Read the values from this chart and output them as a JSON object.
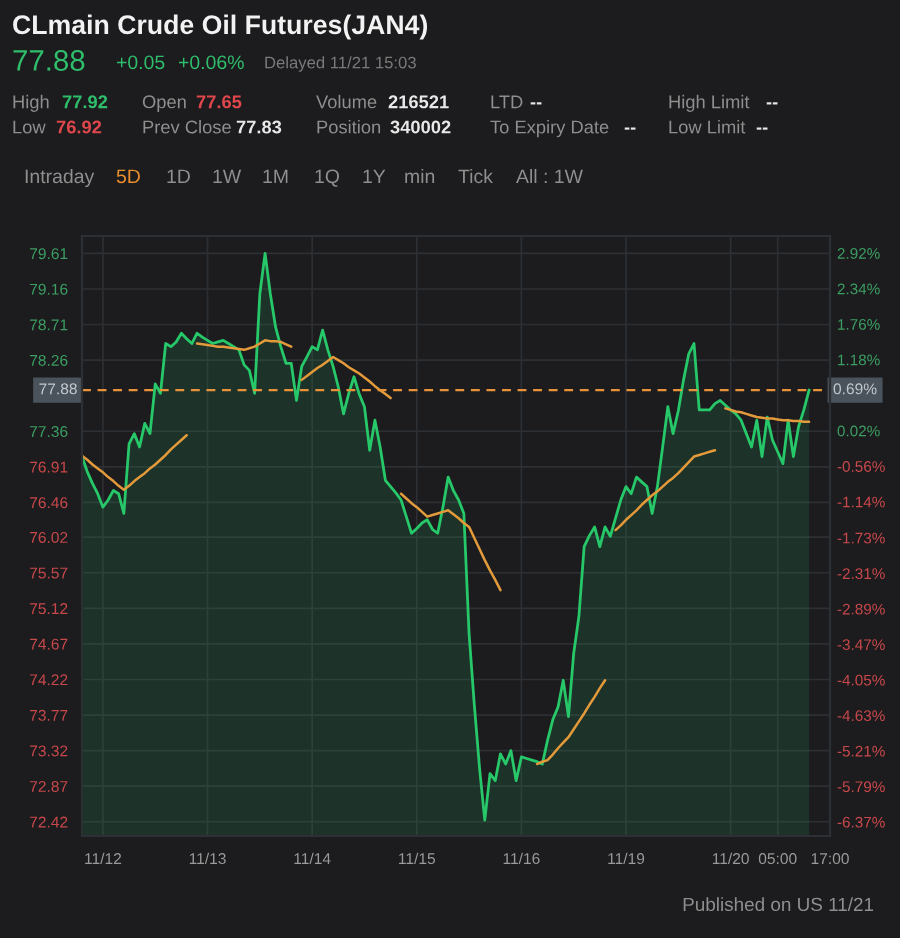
{
  "chart_data": {
    "type": "area",
    "title": "CLmain Crude Oil Futures(JAN4)",
    "annotations": [
      "77.88",
      "+0.05",
      "+0.06%",
      "Delayed 11/21 15:03",
      "High",
      "77.92",
      "Open",
      "77.65",
      "Volume",
      "216521",
      "LTD",
      "--",
      "High Limit",
      "--",
      "Low",
      "76.92",
      "Prev Close",
      "77.83",
      "Position",
      "340002",
      "To Expiry Date",
      "--",
      "Low Limit",
      "--",
      "Intraday",
      "5D",
      "1D",
      "1W",
      "1M",
      "1Q",
      "1Y",
      "min",
      "Tick",
      "All : 1W",
      "Published on US 11/21",
      {
        "text": "0.69%",
        "y": 77.88
      }
    ],
    "categories": [
      null,
      null,
      null,
      null,
      "11/12",
      null,
      null,
      null,
      null,
      null,
      null,
      null,
      null,
      null,
      null,
      null,
      null,
      null,
      null,
      null,
      null,
      null,
      null,
      null,
      "11/13",
      null,
      null,
      null,
      null,
      null,
      null,
      null,
      null,
      null,
      null,
      null,
      null,
      null,
      null,
      null,
      null,
      null,
      null,
      null,
      "11/14",
      null,
      null,
      null,
      null,
      null,
      null,
      null,
      null,
      null,
      null,
      null,
      null,
      null,
      null,
      null,
      null,
      null,
      null,
      null,
      "11/15",
      null,
      null,
      null,
      null,
      null,
      null,
      null,
      null,
      null,
      null,
      null,
      null,
      null,
      null,
      null,
      null,
      null,
      null,
      null,
      "11/16",
      null,
      null,
      null,
      null,
      null,
      null,
      null,
      null,
      null,
      null,
      null,
      null,
      null,
      null,
      null,
      null,
      null,
      null,
      null,
      "11/19",
      null,
      null,
      null,
      null,
      null,
      null,
      null,
      null,
      null,
      null,
      null,
      null,
      null,
      null,
      null,
      null,
      null,
      null,
      null,
      "11/20",
      null,
      null,
      null,
      null,
      null,
      null,
      null,
      null,
      "05:00",
      null,
      null,
      null,
      null,
      null,
      null,
      null,
      null,
      null,
      "17:00"
    ],
    "ylim": [
      72.24,
      79.83
    ],
    "yticks": [
      72.42,
      72.87,
      73.32,
      73.77,
      74.22,
      74.67,
      75.12,
      75.57,
      76.02,
      76.46,
      76.91,
      77.36,
      78.26,
      78.71,
      79.16,
      79.61
    ],
    "y2lim": [
      -6.6,
      3.2
    ],
    "y2ticks": [
      {
        "value": -6.37,
        "label": "-6.37%"
      },
      {
        "value": -5.79,
        "label": "-5.79%"
      },
      {
        "value": -5.21,
        "label": "-5.21%"
      },
      {
        "value": -4.63,
        "label": "-4.63%"
      },
      {
        "value": -4.05,
        "label": "-4.05%"
      },
      {
        "value": -3.47,
        "label": "-3.47%"
      },
      {
        "value": -2.89,
        "label": "-2.89%"
      },
      {
        "value": -2.31,
        "label": "-2.31%"
      },
      {
        "value": -1.73,
        "label": "-1.73%"
      },
      {
        "value": -1.14,
        "label": "-1.14%"
      },
      {
        "value": -0.56,
        "label": "-0.56%"
      },
      {
        "value": 0.02,
        "label": "0.02%"
      },
      {
        "value": 1.18,
        "label": "1.18%"
      },
      {
        "value": 1.76,
        "label": "1.76%"
      },
      {
        "value": 2.34,
        "label": "2.34%"
      },
      {
        "value": 2.92,
        "label": "2.92%"
      }
    ],
    "grid": true,
    "ref_lines": [
      {
        "axis": "y",
        "value": 77.88,
        "label": "77.88",
        "color": "#e8923a",
        "line_style": "dashed"
      }
    ],
    "series": [
      {
        "color": "#27c86a",
        "values": [
          77.04,
          76.85,
          76.7,
          76.57,
          76.4,
          76.49,
          76.61,
          76.57,
          76.32,
          77.2,
          77.33,
          77.16,
          77.46,
          77.33,
          77.96,
          77.84,
          78.47,
          78.43,
          78.49,
          78.6,
          78.53,
          78.47,
          78.6,
          78.55,
          78.51,
          78.47,
          78.49,
          78.51,
          78.47,
          78.43,
          78.39,
          78.2,
          78.13,
          77.84,
          79.1,
          79.61,
          79.1,
          78.68,
          78.43,
          78.22,
          78.22,
          77.75,
          78.18,
          78.3,
          78.43,
          78.39,
          78.64,
          78.39,
          78.18,
          77.92,
          77.58,
          77.84,
          78.05,
          77.83,
          77.67,
          77.12,
          77.5,
          77.16,
          76.74,
          76.66,
          76.58,
          76.49,
          76.28,
          76.07,
          76.13,
          76.2,
          76.24,
          76.12,
          76.07,
          76.4,
          76.78,
          76.61,
          76.49,
          76.32,
          74.8,
          73.9,
          73.1,
          72.44,
          73.03,
          72.94,
          73.28,
          73.15,
          73.32,
          72.94,
          73.24,
          73.22,
          73.2,
          73.18,
          73.15,
          73.45,
          73.71,
          73.87,
          74.21,
          73.75,
          74.55,
          75.02,
          75.9,
          76.04,
          76.15,
          75.9,
          76.15,
          76.03,
          76.26,
          76.49,
          76.66,
          76.57,
          76.78,
          76.72,
          76.66,
          76.32,
          76.66,
          77.16,
          77.67,
          77.33,
          77.62,
          78.01,
          78.34,
          78.47,
          77.63,
          77.63,
          77.63,
          77.71,
          77.75,
          77.69,
          77.63,
          77.58,
          77.5,
          77.33,
          77.16,
          77.5,
          77.04,
          77.54,
          77.25,
          77.1,
          76.95,
          77.5,
          77.04,
          77.42,
          77.63,
          77.88,
          null,
          null,
          null,
          null
        ]
      },
      {
        "type": "line",
        "color": "#e39a3b",
        "values": [
          77.05,
          77.0,
          76.94,
          76.89,
          76.84,
          76.78,
          76.73,
          76.67,
          76.62,
          76.67,
          76.73,
          76.78,
          76.83,
          76.89,
          76.94,
          77.0,
          77.06,
          77.13,
          77.19,
          77.25,
          77.31,
          null,
          78.47,
          78.46,
          78.45,
          78.44,
          78.43,
          78.43,
          78.42,
          78.41,
          78.4,
          78.39,
          78.41,
          78.43,
          78.47,
          78.51,
          78.5,
          78.5,
          78.49,
          78.46,
          78.43,
          null,
          78.01,
          78.06,
          78.11,
          78.16,
          78.2,
          78.25,
          78.3,
          78.26,
          78.22,
          78.17,
          78.13,
          78.09,
          78.04,
          77.99,
          77.93,
          77.88,
          77.83,
          77.78,
          null,
          76.57,
          76.51,
          76.45,
          76.4,
          76.34,
          76.28,
          76.3,
          76.32,
          76.34,
          76.36,
          76.31,
          76.26,
          76.2,
          76.15,
          76.01,
          75.87,
          75.73,
          75.6,
          75.48,
          75.35,
          null,
          null,
          null,
          null,
          null,
          null,
          73.15,
          73.18,
          73.2,
          73.27,
          73.35,
          73.42,
          73.49,
          73.59,
          73.69,
          73.79,
          73.9,
          74.0,
          74.11,
          74.21,
          null,
          76.11,
          76.17,
          76.24,
          76.3,
          76.36,
          76.43,
          76.49,
          76.55,
          76.6,
          76.66,
          76.72,
          76.77,
          76.83,
          76.9,
          76.97,
          77.04,
          77.06,
          77.08,
          77.1,
          77.12,
          null,
          77.65,
          77.63,
          77.61,
          77.6,
          77.58,
          77.56,
          77.54,
          77.53,
          77.52,
          77.52,
          77.51,
          77.5,
          77.5,
          77.49,
          77.49,
          77.48,
          77.48,
          null,
          null,
          null,
          null
        ]
      }
    ]
  }
}
